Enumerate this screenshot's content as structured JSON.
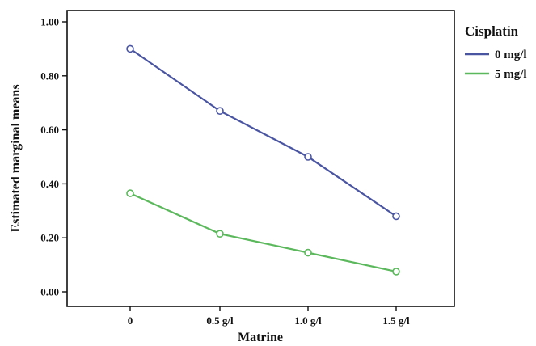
{
  "chart_data": {
    "type": "line",
    "title": "",
    "xlabel": "Matrine",
    "ylabel": "Estimated marginal means",
    "categories": [
      "0",
      "0.5 g/l",
      "1.0 g/l",
      "1.5 g/l"
    ],
    "ylim": [
      0,
      1.0
    ],
    "yticks": [
      "0.00",
      "0.20",
      "0.40",
      "0.60",
      "0.80",
      "1.00"
    ],
    "grid": false,
    "legend": {
      "title": "Cisplatin",
      "placement": "right"
    },
    "series": [
      {
        "name": "0 mg/l",
        "color": "#4a55a2",
        "values": [
          0.9,
          0.67,
          0.5,
          0.28
        ]
      },
      {
        "name": "5 mg/l",
        "color": "#5cb85c",
        "values": [
          0.365,
          0.215,
          0.145,
          0.075
        ]
      }
    ]
  }
}
